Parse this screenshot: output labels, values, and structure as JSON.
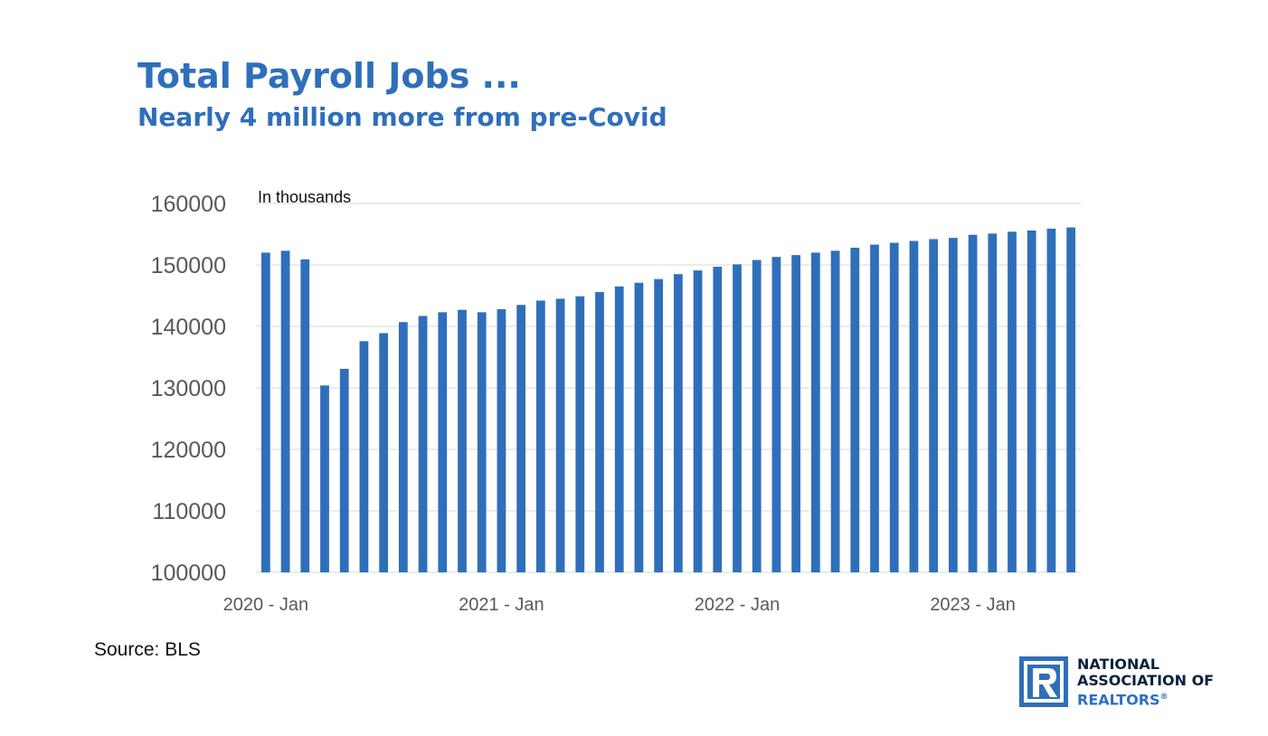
{
  "header": {
    "title": "Total Payroll Jobs ...",
    "subtitle": "Nearly 4 million more from pre-Covid"
  },
  "footer": {
    "source": "Source: BLS"
  },
  "logo": {
    "line1": "NATIONAL",
    "line2": "ASSOCIATION OF",
    "line3": "REALTORS",
    "reg_mark": "®",
    "icon": "realtor-r-logo-icon",
    "colors": {
      "dark": "#0b2140",
      "blue": "#2f6fba"
    }
  },
  "chart_data": {
    "type": "bar",
    "title": "",
    "xlabel": "",
    "ylabel": "",
    "unit_note": "In thousands",
    "ylim": [
      100000,
      160000
    ],
    "yticks": [
      100000,
      110000,
      120000,
      130000,
      140000,
      150000,
      160000
    ],
    "grid": true,
    "legend": "none",
    "bar_color": "#2f6fba",
    "x_tick_labels": [
      {
        "index": 0,
        "label": "2020 - Jan"
      },
      {
        "index": 12,
        "label": "2021 - Jan"
      },
      {
        "index": 24,
        "label": "2022 - Jan"
      },
      {
        "index": 36,
        "label": "2023 - Jan"
      }
    ],
    "categories": [
      "2020-01",
      "2020-02",
      "2020-03",
      "2020-04",
      "2020-05",
      "2020-06",
      "2020-07",
      "2020-08",
      "2020-09",
      "2020-10",
      "2020-11",
      "2020-12",
      "2021-01",
      "2021-02",
      "2021-03",
      "2021-04",
      "2021-05",
      "2021-06",
      "2021-07",
      "2021-08",
      "2021-09",
      "2021-10",
      "2021-11",
      "2021-12",
      "2022-01",
      "2022-02",
      "2022-03",
      "2022-04",
      "2022-05",
      "2022-06",
      "2022-07",
      "2022-08",
      "2022-09",
      "2022-10",
      "2022-11",
      "2022-12",
      "2023-01",
      "2023-02",
      "2023-03",
      "2023-04",
      "2023-05",
      "2023-06"
    ],
    "values": [
      152000,
      152300,
      150900,
      130400,
      133100,
      137600,
      138900,
      140700,
      141700,
      142300,
      142700,
      142300,
      142800,
      143500,
      144200,
      144500,
      144900,
      145600,
      146500,
      147100,
      147700,
      148500,
      149100,
      149700,
      150100,
      150800,
      151300,
      151600,
      152000,
      152300,
      152800,
      153300,
      153600,
      153900,
      154200,
      154400,
      154900,
      155100,
      155400,
      155600,
      155900,
      156100
    ]
  }
}
